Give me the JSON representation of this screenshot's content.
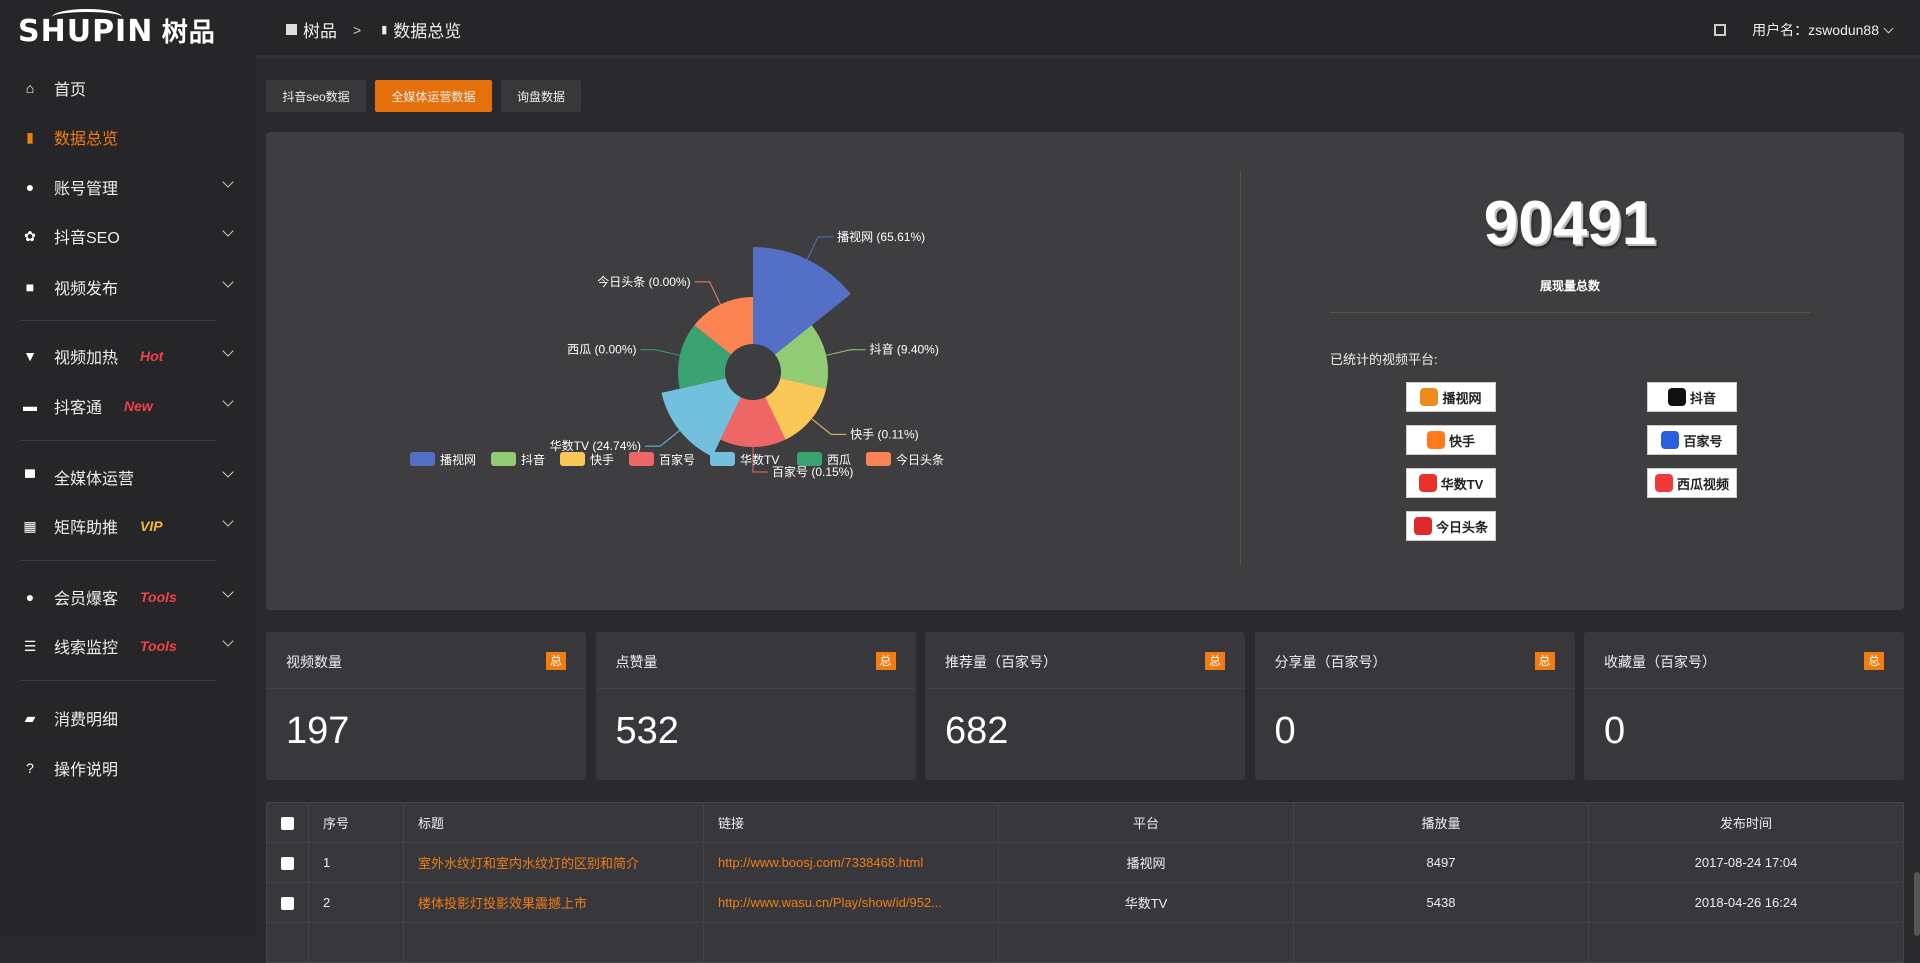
{
  "brand": {
    "logo_text": "SHUPIN",
    "logo_cn": "树品"
  },
  "header": {
    "breadcrumb": [
      "树品",
      "数据总览"
    ],
    "user_label": "用户名：zswodun88"
  },
  "sidebar": {
    "items": [
      {
        "label": "首页",
        "icon": "home-icon"
      },
      {
        "label": "数据总览",
        "icon": "bar-chart-icon",
        "active": true
      },
      {
        "label": "账号管理",
        "icon": "user-icon"
      },
      {
        "label": "抖音SEO",
        "icon": "gear-icon"
      },
      {
        "label": "视频发布",
        "icon": "camera-icon"
      },
      {
        "label": "视频加热",
        "icon": "torch-icon",
        "badge": "Hot"
      },
      {
        "label": "抖客通",
        "icon": "chat-icon",
        "badge": "New"
      },
      {
        "label": "全媒体运营",
        "icon": "monitor-icon"
      },
      {
        "label": "矩阵助推",
        "icon": "grid-icon",
        "badge": "VIP"
      },
      {
        "label": "会员爆客",
        "icon": "user-icon",
        "badge": "Tools"
      },
      {
        "label": "线索监控",
        "icon": "sliders-icon",
        "badge": "Tools"
      },
      {
        "label": "消费明细",
        "icon": "wallet-icon"
      },
      {
        "label": "操作说明",
        "icon": "help-icon"
      }
    ]
  },
  "tabs": [
    {
      "label": "抖音seo数据"
    },
    {
      "label": "全媒体运营数据",
      "active": true
    },
    {
      "label": "询盘数据"
    }
  ],
  "chart_data": {
    "type": "pie",
    "rose": true,
    "categories": [
      "播视网",
      "抖音",
      "快手",
      "百家号",
      "华数TV",
      "西瓜",
      "今日头条"
    ],
    "values": [
      65.61,
      9.4,
      0.11,
      0.15,
      24.74,
      0.0,
      0.0
    ],
    "labels": [
      "播视网 (65.61%)",
      "抖音 (9.40%)",
      "快手 (0.11%)",
      "百家号 (0.15%)",
      "华数TV (24.74%)",
      "西瓜 (0.00%)",
      "今日头条 (0.00%)"
    ],
    "colors": [
      "#5470c6",
      "#91cc75",
      "#fac858",
      "#ee6666",
      "#73c0de",
      "#3ba272",
      "#fc8452"
    ],
    "legend": "bottom"
  },
  "summary": {
    "total": "90491",
    "total_label": "展现量总数",
    "platforms_title": "已统计的视频平台:",
    "platforms": [
      {
        "name": "播视网",
        "color": "#f08a1c"
      },
      {
        "name": "抖音",
        "color": "#111"
      },
      {
        "name": "快手",
        "color": "#ff7a1a"
      },
      {
        "name": "百家号",
        "color": "#2b5fe0"
      },
      {
        "name": "华数TV",
        "color": "#e8332a"
      },
      {
        "name": "西瓜视频",
        "color": "#f03a3a"
      },
      {
        "name": "今日头条",
        "color": "#e02a2a"
      }
    ]
  },
  "stats": [
    {
      "title": "视频数量",
      "badge": "总",
      "value": "197"
    },
    {
      "title": "点赞量",
      "badge": "总",
      "value": "532"
    },
    {
      "title": "推荐量（百家号）",
      "badge": "总",
      "value": "682"
    },
    {
      "title": "分享量（百家号）",
      "badge": "总",
      "value": "0"
    },
    {
      "title": "收藏量（百家号）",
      "badge": "总",
      "value": "0"
    }
  ],
  "table": {
    "columns": [
      "序号",
      "标题",
      "链接",
      "平台",
      "播放量",
      "发布时间"
    ],
    "rows": [
      {
        "no": "1",
        "title": "室外水纹灯和室内水纹灯的区别和简介",
        "link": "http://www.boosj.com/7338468.html",
        "platform": "播视网",
        "plays": "8497",
        "time": "2017-08-24 17:04"
      },
      {
        "no": "2",
        "title": "楼体投影灯投影效果震撼上市",
        "link": "http://www.wasu.cn/Play/show/id/952...",
        "platform": "华数TV",
        "plays": "5438",
        "time": "2018-04-26 16:24"
      }
    ]
  }
}
